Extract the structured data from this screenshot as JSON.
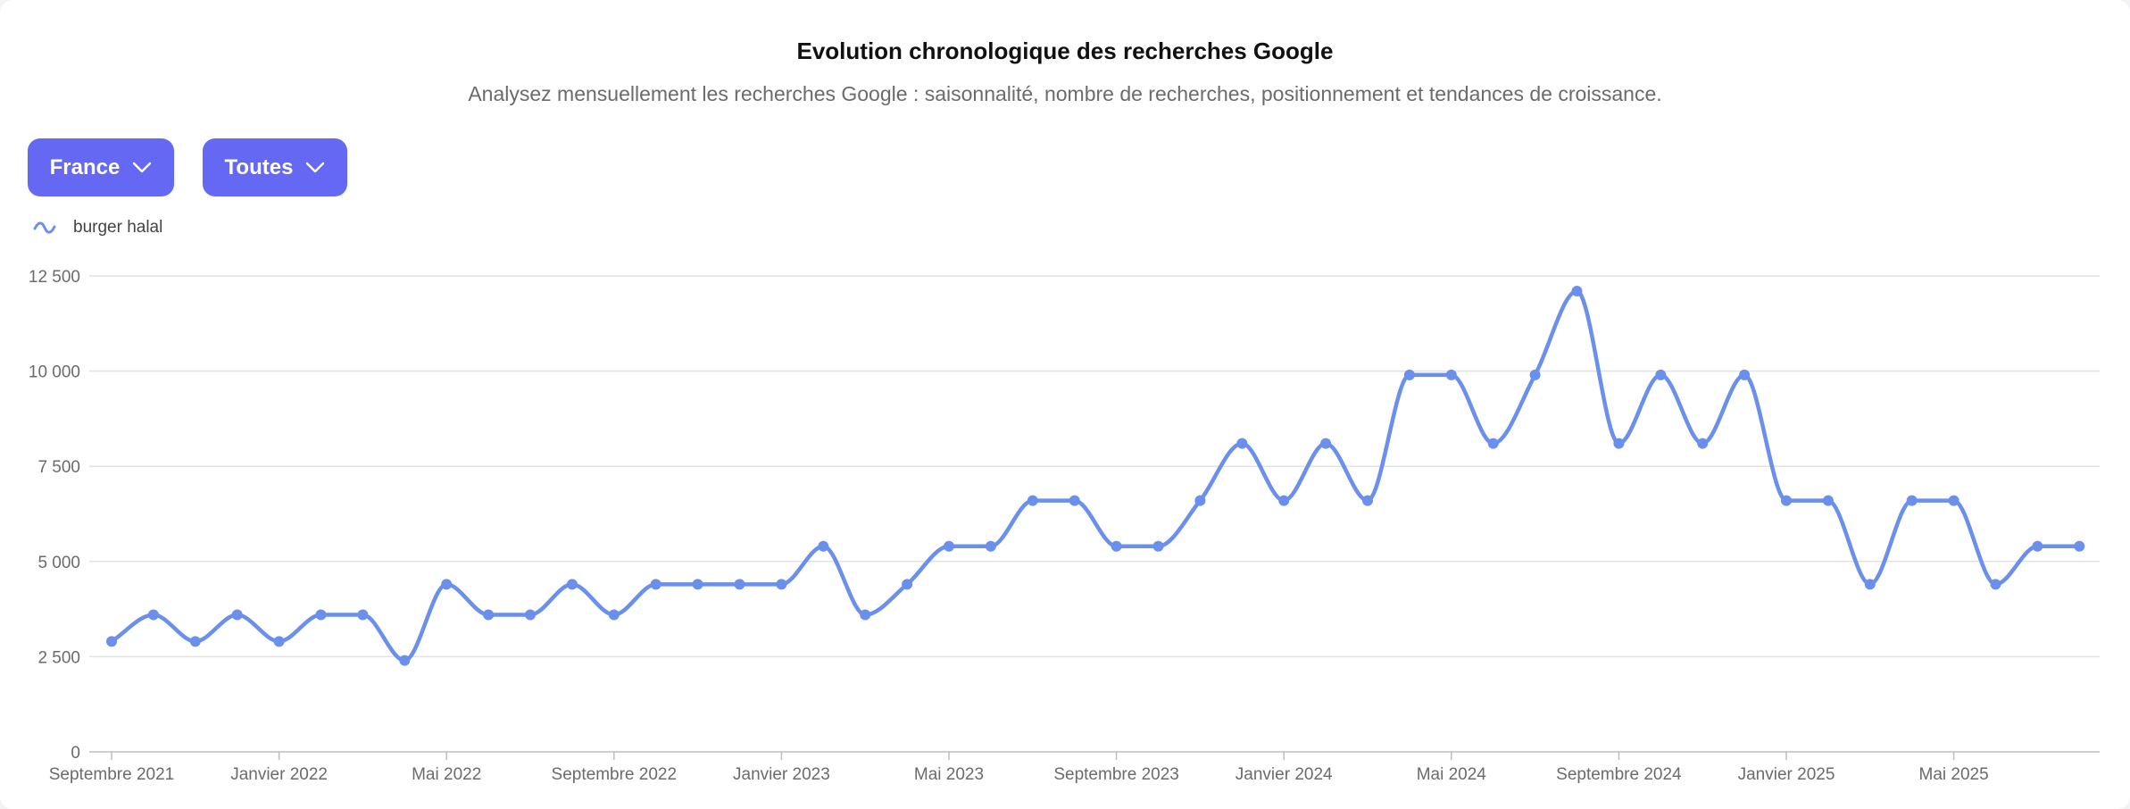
{
  "header": {
    "title": "Evolution chronologique des recherches Google",
    "subtitle": "Analysez mensuellement les recherches Google : saisonnalité, nombre de recherches, positionnement et tendances de croissance."
  },
  "filters": {
    "country": {
      "label": "France",
      "icon": "chevron-down-icon"
    },
    "category": {
      "label": "Toutes",
      "icon": "chevron-down-icon"
    }
  },
  "colors": {
    "accent": "#6468f2",
    "series": "#6a8fec",
    "grid": "#e3e3e3",
    "axis_text": "#6b6b6b"
  },
  "chart_data": {
    "type": "line",
    "smooth": true,
    "legend": {
      "position": "top-left"
    },
    "grid": {
      "y": true,
      "x": false
    },
    "ylim": [
      0,
      12500
    ],
    "y_ticks": [
      0,
      2500,
      5000,
      7500,
      10000,
      12500
    ],
    "y_tick_labels": [
      "0",
      "2 500",
      "5 000",
      "7 500",
      "10 000",
      "12 500"
    ],
    "x_ticks": [
      {
        "index": 0,
        "label": "Septembre 2021"
      },
      {
        "index": 4,
        "label": "Janvier 2022"
      },
      {
        "index": 8,
        "label": "Mai 2022"
      },
      {
        "index": 12,
        "label": "Septembre 2022"
      },
      {
        "index": 16,
        "label": "Janvier 2023"
      },
      {
        "index": 20,
        "label": "Mai 2023"
      },
      {
        "index": 24,
        "label": "Septembre 2023"
      },
      {
        "index": 28,
        "label": "Janvier 2024"
      },
      {
        "index": 32,
        "label": "Mai 2024"
      },
      {
        "index": 36,
        "label": "Septembre 2024"
      },
      {
        "index": 40,
        "label": "Janvier 2025"
      },
      {
        "index": 44,
        "label": "Mai 2025"
      }
    ],
    "x": [
      "2021-09",
      "2021-10",
      "2021-11",
      "2021-12",
      "2022-01",
      "2022-02",
      "2022-03",
      "2022-04",
      "2022-05",
      "2022-06",
      "2022-07",
      "2022-08",
      "2022-09",
      "2022-10",
      "2022-11",
      "2022-12",
      "2023-01",
      "2023-02",
      "2023-03",
      "2023-04",
      "2023-05",
      "2023-06",
      "2023-07",
      "2023-08",
      "2023-09",
      "2023-10",
      "2023-11",
      "2023-12",
      "2024-01",
      "2024-02",
      "2024-03",
      "2024-04",
      "2024-05",
      "2024-06",
      "2024-07",
      "2024-08",
      "2024-09",
      "2024-10",
      "2024-11",
      "2024-12",
      "2025-01",
      "2025-02",
      "2025-03",
      "2025-04",
      "2025-05",
      "2025-06",
      "2025-07",
      "2025-08"
    ],
    "series": [
      {
        "name": "burger halal",
        "values": [
          2900,
          3600,
          2900,
          3600,
          2900,
          3600,
          3600,
          2400,
          4400,
          3600,
          3600,
          4400,
          3600,
          4400,
          4400,
          4400,
          4400,
          5400,
          3600,
          4400,
          5400,
          5400,
          6600,
          6600,
          5400,
          5400,
          6600,
          8100,
          6600,
          8100,
          6600,
          9900,
          9900,
          8100,
          9900,
          12100,
          8100,
          9900,
          8100,
          9900,
          6600,
          6600,
          4400,
          6600,
          6600,
          4400,
          5400,
          5400
        ]
      }
    ]
  }
}
